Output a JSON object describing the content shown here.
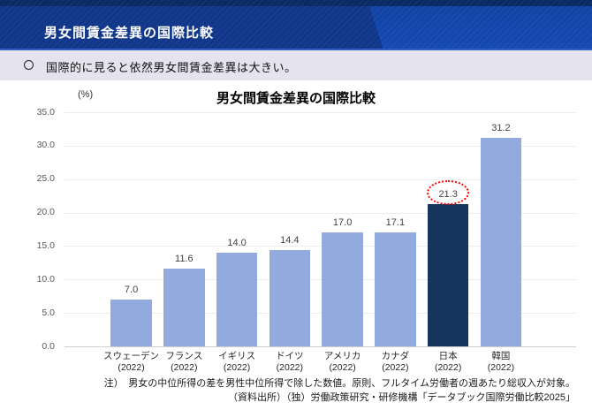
{
  "header": {
    "title": "男女間賃金差異の国際比較"
  },
  "lead": {
    "bullet": "circle-bullet",
    "text": "国際的に見ると依然男女間賃金差異は大きい。"
  },
  "chart_data": {
    "type": "bar",
    "title": "男女間賃金差異の国際比較",
    "unit_label": "(%)",
    "categories": [
      "スウェーデン",
      "フランス",
      "イギリス",
      "ドイツ",
      "アメリカ",
      "カナダ",
      "日本",
      "韓国"
    ],
    "category_sublabels": [
      "(2022)",
      "(2022)",
      "(2022)",
      "(2022)",
      "(2022)",
      "(2022)",
      "(2022)",
      "(2022)"
    ],
    "values": [
      7.0,
      11.6,
      14.0,
      14.4,
      17.0,
      17.1,
      21.3,
      31.2
    ],
    "value_labels": [
      "7.0",
      "11.6",
      "14.0",
      "14.4",
      "17.0",
      "17.1",
      "21.3",
      "31.2"
    ],
    "yticks": [
      0,
      5,
      10,
      15,
      20,
      25,
      30,
      35
    ],
    "ytick_labels": [
      "0.0",
      "5.0",
      "10.0",
      "15.0",
      "20.0",
      "25.0",
      "30.0",
      "35.0"
    ],
    "ylim": [
      0,
      35
    ],
    "grid": "horizontal",
    "legend": "none",
    "highlight_index": 6,
    "annotation": {
      "shape": "dotted-ellipse",
      "target_category": "日本",
      "target_value_label": "21.3"
    },
    "colors": {
      "bar": "#93AADF",
      "highlight_bar": "#16355E",
      "annotation": "#FF0000"
    }
  },
  "notes": {
    "note": "注）　男女の中位所得の差を男性中位所得で除した数値。原則、フルタイム労働者の週あたり総収入が対象。",
    "source": "（資料出所）（独）労働政策研究・研修機構「データブック国際労働比較2025」"
  }
}
